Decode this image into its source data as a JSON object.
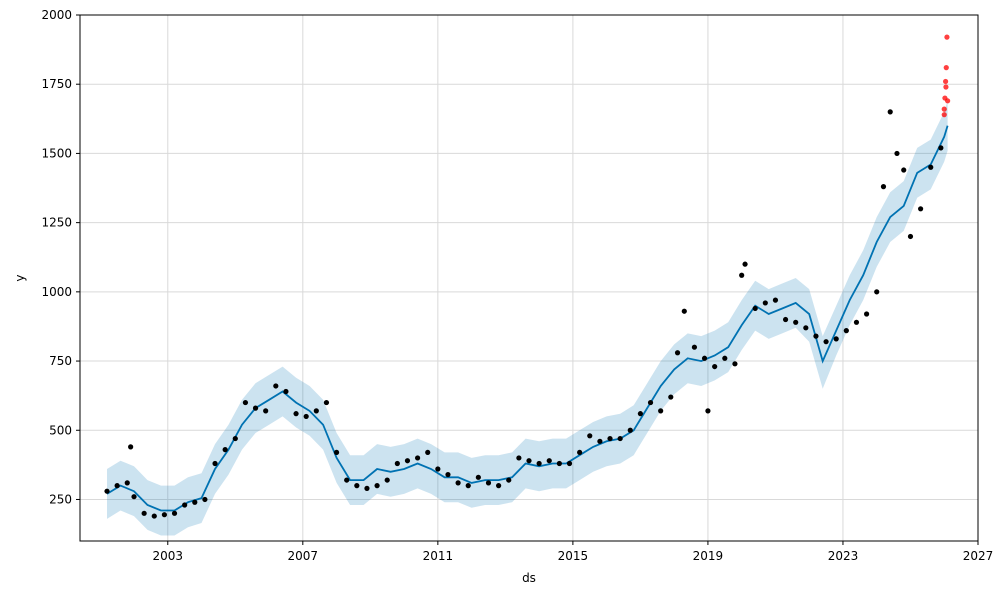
{
  "chart_data": {
    "type": "line",
    "title": "",
    "xlabel": "ds",
    "ylabel": "y",
    "xlim": [
      2000.4,
      2027.0
    ],
    "ylim": [
      100,
      2000
    ],
    "x_ticks": [
      2003,
      2007,
      2011,
      2015,
      2019,
      2023,
      2027
    ],
    "x_tick_labels": [
      "2003",
      "2007",
      "2011",
      "2015",
      "2019",
      "2023",
      "2027"
    ],
    "y_ticks": [
      250,
      500,
      750,
      1000,
      1250,
      1500,
      1750,
      2000
    ],
    "y_tick_labels": [
      "250",
      "500",
      "750",
      "1000",
      "1250",
      "1500",
      "1750",
      "2000"
    ],
    "grid": true,
    "colors": {
      "forecast_line": "#0072B2",
      "uncertainty_band": "#0072B2",
      "observed_points": "#000000",
      "test_points": "#ff0000"
    },
    "series": [
      {
        "role": "forecast",
        "x": [
          2001.2,
          2001.6,
          2002.0,
          2002.4,
          2002.8,
          2003.2,
          2003.6,
          2004.0,
          2004.4,
          2004.8,
          2005.2,
          2005.6,
          2006.0,
          2006.4,
          2006.8,
          2007.2,
          2007.6,
          2008.0,
          2008.4,
          2008.8,
          2009.2,
          2009.6,
          2010.0,
          2010.4,
          2010.8,
          2011.2,
          2011.6,
          2012.0,
          2012.4,
          2012.8,
          2013.2,
          2013.6,
          2014.0,
          2014.4,
          2014.8,
          2015.2,
          2015.6,
          2016.0,
          2016.4,
          2016.8,
          2017.2,
          2017.6,
          2018.0,
          2018.4,
          2018.8,
          2019.2,
          2019.6,
          2020.0,
          2020.4,
          2020.8,
          2021.2,
          2021.6,
          2022.0,
          2022.4,
          2022.8,
          2023.2,
          2023.6,
          2024.0,
          2024.4,
          2024.8,
          2025.2,
          2025.6,
          2026.0,
          2026.1
        ],
        "y": [
          270,
          300,
          280,
          230,
          210,
          210,
          240,
          255,
          360,
          430,
          520,
          580,
          610,
          640,
          600,
          570,
          520,
          400,
          320,
          320,
          360,
          350,
          360,
          380,
          360,
          330,
          330,
          310,
          320,
          320,
          330,
          380,
          370,
          380,
          380,
          410,
          440,
          460,
          470,
          500,
          580,
          660,
          720,
          760,
          750,
          770,
          800,
          880,
          950,
          920,
          940,
          960,
          920,
          750,
          860,
          970,
          1060,
          1180,
          1270,
          1310,
          1430,
          1460,
          1560,
          1600
        ],
        "lower": [
          180,
          210,
          190,
          140,
          120,
          120,
          150,
          165,
          270,
          340,
          430,
          490,
          520,
          550,
          510,
          480,
          430,
          310,
          230,
          230,
          270,
          260,
          270,
          290,
          270,
          240,
          240,
          220,
          230,
          230,
          240,
          290,
          280,
          290,
          290,
          320,
          350,
          370,
          380,
          410,
          490,
          570,
          630,
          670,
          660,
          680,
          710,
          790,
          860,
          830,
          850,
          870,
          820,
          650,
          770,
          880,
          970,
          1090,
          1180,
          1220,
          1340,
          1370,
          1470,
          1510
        ],
        "upper": [
          360,
          390,
          370,
          320,
          300,
          300,
          330,
          345,
          450,
          520,
          610,
          670,
          700,
          730,
          690,
          660,
          610,
          490,
          410,
          410,
          450,
          440,
          450,
          470,
          450,
          420,
          420,
          400,
          410,
          410,
          420,
          470,
          460,
          470,
          470,
          500,
          530,
          550,
          560,
          590,
          670,
          750,
          810,
          850,
          840,
          860,
          890,
          970,
          1040,
          1010,
          1030,
          1050,
          1010,
          840,
          950,
          1060,
          1150,
          1270,
          1360,
          1400,
          1520,
          1550,
          1650,
          1690
        ]
      },
      {
        "role": "observed",
        "x": [
          2001.2,
          2001.5,
          2001.8,
          2001.9,
          2002.0,
          2002.3,
          2002.6,
          2002.9,
          2003.2,
          2003.5,
          2003.8,
          2004.1,
          2004.4,
          2004.7,
          2005.0,
          2005.3,
          2005.6,
          2005.9,
          2006.2,
          2006.5,
          2006.8,
          2007.1,
          2007.4,
          2007.7,
          2008.0,
          2008.3,
          2008.6,
          2008.9,
          2009.2,
          2009.5,
          2009.8,
          2010.1,
          2010.4,
          2010.7,
          2011.0,
          2011.3,
          2011.6,
          2011.9,
          2012.2,
          2012.5,
          2012.8,
          2013.1,
          2013.4,
          2013.7,
          2014.0,
          2014.3,
          2014.6,
          2014.9,
          2015.2,
          2015.5,
          2015.8,
          2016.1,
          2016.4,
          2016.7,
          2017.0,
          2017.3,
          2017.6,
          2017.9,
          2018.1,
          2018.3,
          2018.6,
          2018.9,
          2019.0,
          2019.2,
          2019.5,
          2019.8,
          2020.0,
          2020.1,
          2020.4,
          2020.7,
          2021.0,
          2021.3,
          2021.6,
          2021.9,
          2022.2,
          2022.5,
          2022.8,
          2023.1,
          2023.4,
          2023.7,
          2024.0,
          2024.2,
          2024.4,
          2024.6,
          2024.8,
          2025.0,
          2025.3,
          2025.6,
          2025.9
        ],
        "y": [
          280,
          300,
          310,
          440,
          260,
          200,
          190,
          195,
          200,
          230,
          240,
          250,
          380,
          430,
          470,
          600,
          580,
          570,
          660,
          640,
          560,
          550,
          570,
          600,
          420,
          320,
          300,
          290,
          300,
          320,
          380,
          390,
          400,
          420,
          360,
          340,
          310,
          300,
          330,
          310,
          300,
          320,
          400,
          390,
          380,
          390,
          380,
          380,
          420,
          480,
          460,
          470,
          470,
          500,
          560,
          600,
          570,
          620,
          780,
          930,
          800,
          760,
          570,
          730,
          760,
          740,
          1060,
          1100,
          940,
          960,
          970,
          900,
          890,
          870,
          840,
          820,
          830,
          860,
          890,
          920,
          1000,
          1380,
          1650,
          1500,
          1440,
          1200,
          1300,
          1450,
          1520
        ]
      },
      {
        "role": "test",
        "x": [
          2026.0,
          2026.02,
          2026.04,
          2026.06,
          2026.08,
          2026.0,
          2026.05,
          2026.1
        ],
        "y": [
          1640,
          1700,
          1760,
          1810,
          1920,
          1660,
          1740,
          1690
        ]
      }
    ]
  }
}
